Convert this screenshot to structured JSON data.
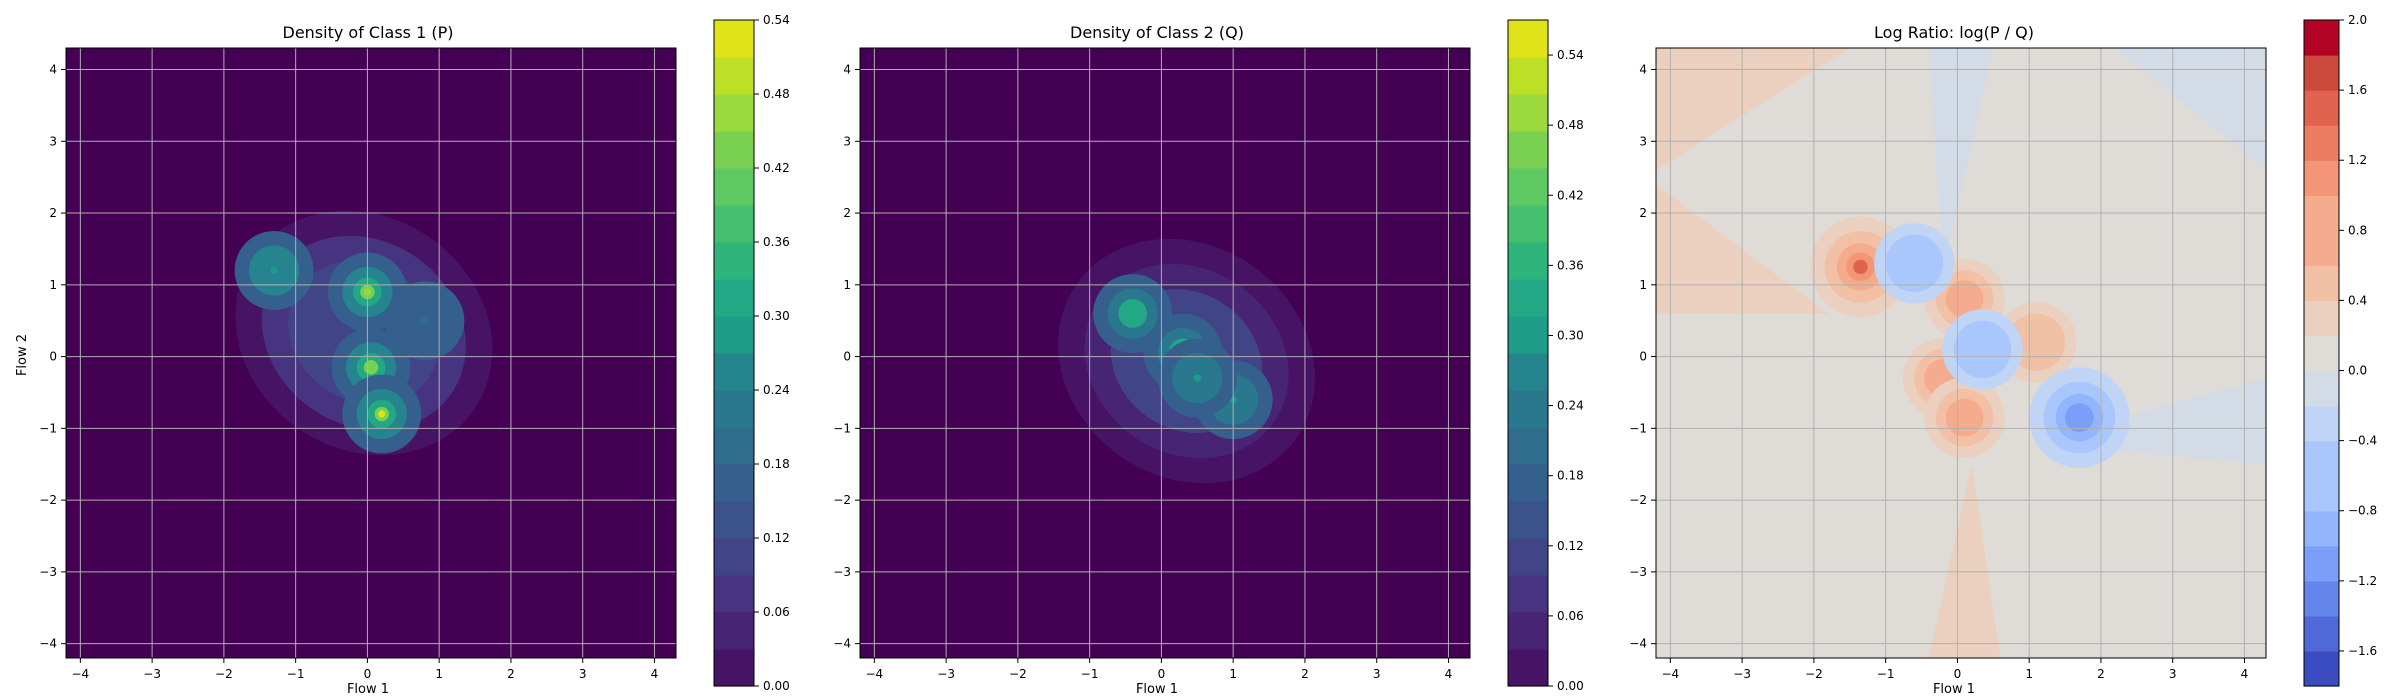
{
  "chart_data": [
    {
      "type": "heatmap",
      "title": "Density of Class 1 (P)",
      "xlabel": "Flow 1",
      "ylabel": "Flow 2",
      "xlim": [
        -4.2,
        4.3
      ],
      "ylim": [
        -4.2,
        4.3
      ],
      "xticks": [
        -4,
        -3,
        -2,
        -1,
        0,
        1,
        2,
        3,
        4
      ],
      "yticks": [
        -4,
        -3,
        -2,
        -1,
        0,
        1,
        2,
        3,
        4
      ],
      "grid": true,
      "colormap": "viridis",
      "colorbar": {
        "min": 0.0,
        "max": 0.54,
        "ticks": [
          "0.00",
          "0.06",
          "0.12",
          "0.18",
          "0.24",
          "0.30",
          "0.36",
          "0.42",
          "0.48",
          "0.54"
        ]
      },
      "modes": [
        {
          "x": 0.0,
          "y": 0.9,
          "peak": 0.45
        },
        {
          "x": 0.05,
          "y": -0.15,
          "peak": 0.42
        },
        {
          "x": 0.2,
          "y": -0.8,
          "peak": 0.5
        },
        {
          "x": -1.3,
          "y": 1.2,
          "peak": 0.3
        },
        {
          "x": 0.8,
          "y": 0.5,
          "peak": 0.2
        }
      ]
    },
    {
      "type": "heatmap",
      "title": "Density of Class 2 (Q)",
      "xlabel": "Flow 1",
      "ylabel": "",
      "xlim": [
        -4.2,
        4.3
      ],
      "ylim": [
        -4.2,
        4.3
      ],
      "xticks": [
        -4,
        -3,
        -2,
        -1,
        0,
        1,
        2,
        3,
        4
      ],
      "yticks": [
        -4,
        -3,
        -2,
        -1,
        0,
        1,
        2,
        3,
        4
      ],
      "grid": true,
      "colormap": "viridis",
      "colorbar": {
        "min": 0.0,
        "max": 0.57,
        "ticks": [
          "0.00",
          "0.06",
          "0.12",
          "0.18",
          "0.24",
          "0.30",
          "0.36",
          "0.42",
          "0.48",
          "0.54"
        ]
      },
      "modes": [
        {
          "x": 0.3,
          "y": 0.05,
          "peak": 0.55
        },
        {
          "x": -0.4,
          "y": 0.6,
          "peak": 0.35
        },
        {
          "x": 1.0,
          "y": -0.6,
          "peak": 0.3
        },
        {
          "x": 0.5,
          "y": -0.3,
          "peak": 0.3
        }
      ]
    },
    {
      "type": "heatmap",
      "title": "Log Ratio: log(P / Q)",
      "xlabel": "Flow 1",
      "ylabel": "",
      "xlim": [
        -4.2,
        4.3
      ],
      "ylim": [
        -4.2,
        4.3
      ],
      "xticks": [
        -4,
        -3,
        -2,
        -1,
        0,
        1,
        2,
        3,
        4
      ],
      "yticks": [
        -4,
        -3,
        -2,
        -1,
        0,
        1,
        2,
        3,
        4
      ],
      "grid": true,
      "colormap": "coolwarm",
      "colorbar": {
        "min": -1.8,
        "max": 2.0,
        "ticks": [
          "-1.6",
          "-1.2",
          "-0.8",
          "-0.4",
          "0.0",
          "0.4",
          "0.8",
          "1.2",
          "1.6",
          "2.0"
        ]
      },
      "modes": [
        {
          "x": -1.35,
          "y": 1.25,
          "value": 1.6
        },
        {
          "x": 0.1,
          "y": 0.8,
          "value": 0.9
        },
        {
          "x": -0.2,
          "y": -0.3,
          "value": 0.8
        },
        {
          "x": 0.1,
          "y": -0.85,
          "value": 0.8
        },
        {
          "x": 1.1,
          "y": 0.2,
          "value": 0.6
        },
        {
          "x": 1.7,
          "y": -0.85,
          "value": -1.2
        },
        {
          "x": 0.35,
          "y": 0.1,
          "value": -0.7
        },
        {
          "x": -0.6,
          "y": 1.3,
          "value": -0.5
        }
      ]
    }
  ]
}
